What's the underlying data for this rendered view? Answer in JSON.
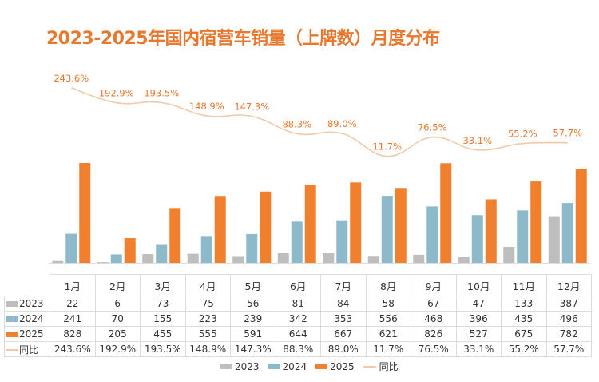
{
  "title": "2023-2025年国内宿营车销量（上牌数）月度分布",
  "colors": {
    "2023": "#BEBEBE",
    "2024": "#8DBACB",
    "2025": "#F07F2E",
    "yoy": "#F2C9A8",
    "title": "#E8782E"
  },
  "table": {
    "row_labels": [
      "2023",
      "2024",
      "2025",
      "同比"
    ]
  },
  "legend": [
    {
      "label": "2023",
      "type": "bar"
    },
    {
      "label": "2024",
      "type": "bar"
    },
    {
      "label": "2025",
      "type": "bar"
    },
    {
      "label": "同比",
      "type": "line"
    }
  ],
  "chart_data": {
    "type": "bar",
    "title": "2023-2025年国内宿营车销量（上牌数）月度分布",
    "categories": [
      "1月",
      "2月",
      "3月",
      "4月",
      "5月",
      "6月",
      "7月",
      "8月",
      "9月",
      "10月",
      "11月",
      "12月"
    ],
    "series": [
      {
        "name": "2023",
        "type": "bar",
        "values": [
          22,
          6,
          73,
          75,
          56,
          81,
          84,
          58,
          67,
          47,
          133,
          387
        ]
      },
      {
        "name": "2024",
        "type": "bar",
        "values": [
          241,
          70,
          155,
          223,
          239,
          342,
          353,
          556,
          468,
          396,
          435,
          496
        ]
      },
      {
        "name": "2025",
        "type": "bar",
        "values": [
          828,
          205,
          455,
          555,
          591,
          644,
          667,
          621,
          826,
          527,
          675,
          782
        ]
      },
      {
        "name": "同比",
        "type": "line",
        "axis": "secondary",
        "unit": "%",
        "values": [
          243.6,
          192.9,
          193.5,
          148.9,
          147.3,
          88.3,
          89.0,
          11.7,
          76.5,
          33.1,
          55.2,
          57.7
        ],
        "labels": [
          "243.6%",
          "192.9%",
          "193.5%",
          "148.9%",
          "147.3%",
          "88.3%",
          "89.0%",
          "11.7%",
          "76.5%",
          "33.1%",
          "55.2%",
          "57.7%"
        ]
      }
    ],
    "xlabel": "",
    "ylabel": "",
    "grid": false,
    "data_table": true,
    "legend_position": "bottom"
  }
}
